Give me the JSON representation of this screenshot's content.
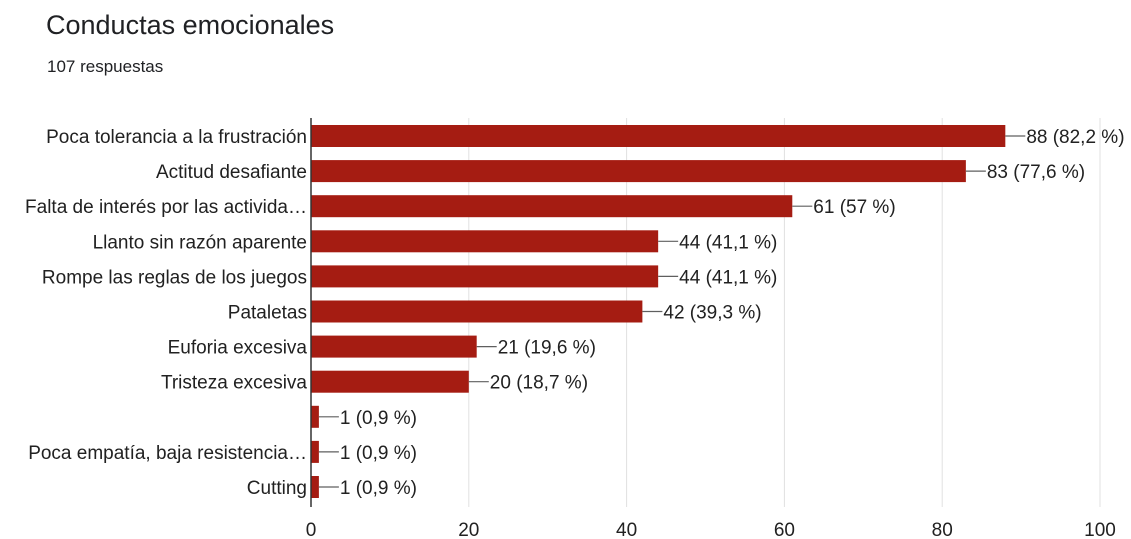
{
  "title": "Conductas emocionales",
  "subtitle": "107 respuestas",
  "chart_data": {
    "type": "bar",
    "orientation": "horizontal",
    "categories": [
      "Poca tolerancia a la frustración",
      "Actitud desafiante",
      "Falta de interés por las activida…",
      "Llanto sin razón aparente",
      "Rompe las reglas de los juegos",
      "Pataletas",
      "Euforia excesiva",
      "Tristeza excesiva",
      "",
      "Poca empatía, baja resistencia…",
      "Cutting"
    ],
    "values": [
      88,
      83,
      61,
      44,
      44,
      42,
      21,
      20,
      1,
      1,
      1
    ],
    "data_labels": [
      "88 (82,2 %)",
      "83 (77,6 %)",
      "61 (57 %)",
      "44 (41,1 %)",
      "44 (41,1 %)",
      "42 (39,3 %)",
      "21 (19,6 %)",
      "20 (18,7 %)",
      "1 (0,9 %)",
      "1 (0,9 %)",
      "1 (0,9 %)"
    ],
    "xlim": [
      0,
      100
    ],
    "xticks": [
      0,
      20,
      40,
      60,
      80,
      100
    ],
    "grid": true,
    "bar_color": "#a51c12"
  }
}
